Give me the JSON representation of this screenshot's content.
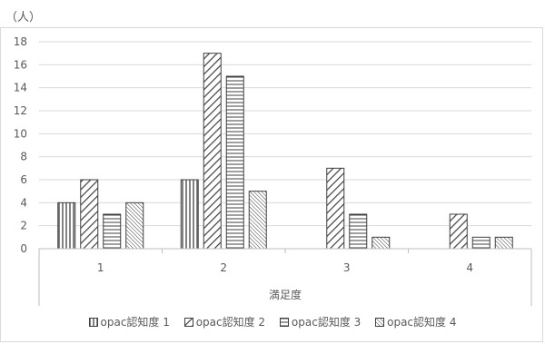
{
  "unit_label": "（人）",
  "chart_data": {
    "type": "bar",
    "title": "",
    "xlabel": "満足度",
    "ylabel": "（人）",
    "categories": [
      "1",
      "2",
      "3",
      "4"
    ],
    "ylim": [
      0,
      18
    ],
    "yticks": [
      0,
      2,
      4,
      6,
      8,
      10,
      12,
      14,
      16,
      18
    ],
    "grid": true,
    "legend_position": "bottom",
    "series": [
      {
        "name": "opac認知度 1",
        "values": [
          4,
          6,
          0,
          0
        ],
        "pattern": "vertical"
      },
      {
        "name": "opac認知度 2",
        "values": [
          6,
          17,
          7,
          3
        ],
        "pattern": "diagonal"
      },
      {
        "name": "opac認知度 3",
        "values": [
          3,
          15,
          3,
          1
        ],
        "pattern": "horizontal"
      },
      {
        "name": "opac認知度 4",
        "values": [
          4,
          5,
          1,
          1
        ],
        "pattern": "diagonal-dense"
      }
    ],
    "colors": {
      "bar_stroke": "#404040",
      "grid": "#d9d9d9",
      "axis": "#bfbfbf",
      "text": "#595959"
    }
  }
}
